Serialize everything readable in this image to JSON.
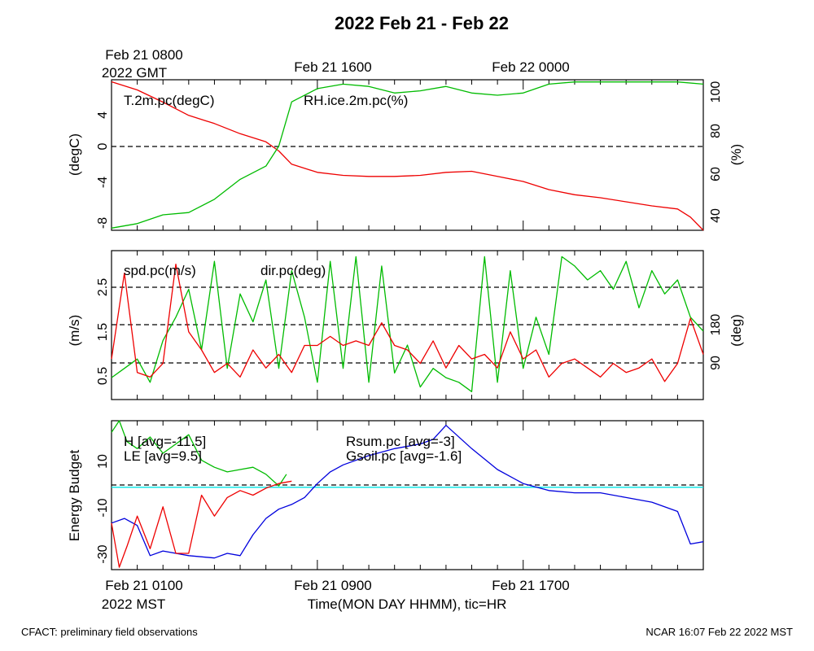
{
  "title": "2022 Feb 21 - Feb 22",
  "footer": {
    "left": "CFACT: preliminary field observations",
    "right": "NCAR 16:07 Feb 22 2022 MST"
  },
  "top_axis": {
    "line1": "Feb 21 0800",
    "line2": "2022 GMT",
    "labels": [
      "Feb 21 1600",
      "Feb 22 0000"
    ]
  },
  "bottom_axis": {
    "line2": "2022 MST",
    "labels": [
      "Feb 21 0100",
      "Feb 21 0900",
      "Feb 21 1700"
    ],
    "xlabel": "Time(MON DAY HHMM), tic=HR"
  },
  "colors": {
    "red": "#ee0000",
    "green": "#00bb00",
    "blue": "#0000dd",
    "cyan": "#00e5e5"
  },
  "chart_data": [
    {
      "type": "line",
      "x_unit": "hours since Feb 21 0000 MST",
      "xlim": [
        1,
        24
      ],
      "ylabel_left": "(degC)",
      "ylabel_right": "(%)",
      "ylim_left": [
        -8.3,
        6.5
      ],
      "ylim_right": [
        34,
        102
      ],
      "yticks_left": [
        "4",
        "0",
        "-4",
        "-8"
      ],
      "yticks_right": [
        "100",
        "80",
        "60",
        "40"
      ],
      "reference_lines_left": [
        0
      ],
      "series": [
        {
          "name": "T.2m.pc(degC)",
          "axis": "left",
          "color": "red",
          "x": [
            1,
            2,
            3,
            4,
            5,
            6,
            7,
            7.5,
            8,
            9,
            10,
            11,
            12,
            13,
            14,
            15,
            16,
            17,
            18,
            19,
            20,
            21,
            22,
            23,
            23.5,
            24
          ],
          "y": [
            6.3,
            5.5,
            4.3,
            3.0,
            2.2,
            1.2,
            0.4,
            -0.5,
            -1.8,
            -2.6,
            -2.9,
            -3.0,
            -3.0,
            -2.9,
            -2.6,
            -2.5,
            -3.0,
            -3.5,
            -4.3,
            -4.8,
            -5.1,
            -5.5,
            -5.9,
            -6.2,
            -7.0,
            -8.3
          ]
        },
        {
          "name": "RH.ice.2m.pc(%)",
          "axis": "right",
          "color": "green",
          "x": [
            1,
            2,
            3,
            4,
            5,
            6,
            7,
            7.5,
            8,
            9,
            10,
            11,
            12,
            13,
            14,
            15,
            16,
            17,
            18,
            19,
            20,
            21,
            22,
            23,
            24
          ],
          "y": [
            35,
            37,
            41,
            42,
            48,
            57,
            63,
            72,
            92,
            98,
            100,
            99,
            96,
            97,
            99,
            96,
            95,
            96,
            100,
            101,
            101,
            101,
            101,
            101,
            100
          ]
        }
      ]
    },
    {
      "type": "line",
      "x_unit": "hours since Feb 21 0000 MST",
      "xlim": [
        1,
        24
      ],
      "ylabel_left": "(m/s)",
      "ylabel_right": "(deg)",
      "ylim_left": [
        0.1,
        3.4
      ],
      "ylim_right": [
        23,
        343
      ],
      "yticks_left": [
        "2.5",
        "1.5",
        "0.5"
      ],
      "yticks_right": [
        "180",
        "90"
      ],
      "reference_lines_left": [
        0.8,
        1.65,
        2.5
      ],
      "series": [
        {
          "name": "spd.pc(m/s)",
          "axis": "left",
          "color": "red",
          "x": [
            1,
            1.5,
            2,
            2.5,
            3,
            3.5,
            4,
            4.5,
            5,
            5.5,
            6,
            6.5,
            7,
            7.5,
            8,
            8.5,
            9,
            9.5,
            10,
            10.5,
            11,
            11.5,
            12,
            12.5,
            13,
            13.5,
            14,
            14.5,
            15,
            15.5,
            16,
            16.5,
            17,
            17.5,
            18,
            18.5,
            19,
            19.5,
            20,
            20.5,
            21,
            21.5,
            22,
            22.5,
            23,
            23.5,
            24
          ],
          "y": [
            1.0,
            2.9,
            0.7,
            0.6,
            0.9,
            3.1,
            1.6,
            1.2,
            0.7,
            0.9,
            0.6,
            1.2,
            0.8,
            1.1,
            0.7,
            1.3,
            1.3,
            1.5,
            1.3,
            1.4,
            1.3,
            1.8,
            1.3,
            1.2,
            0.9,
            1.4,
            0.8,
            1.3,
            1.0,
            1.1,
            0.8,
            1.6,
            1.0,
            1.2,
            0.6,
            0.9,
            1.0,
            0.8,
            0.6,
            0.9,
            0.7,
            0.8,
            1.0,
            0.5,
            0.9,
            1.9,
            1.1
          ]
        },
        {
          "name": "dir.pc(deg)",
          "axis": "right",
          "color": "green",
          "x": [
            1,
            1.5,
            2,
            2.5,
            3,
            3.5,
            4,
            4.5,
            5,
            5.5,
            6,
            6.5,
            7,
            7.5,
            8,
            8.5,
            9,
            9.5,
            10,
            10.5,
            11,
            11.5,
            12,
            12.5,
            13,
            13.5,
            14,
            14.5,
            15,
            15.5,
            16,
            16.5,
            17,
            17.5,
            18,
            18.5,
            19,
            19.5,
            20,
            20.5,
            21,
            21.5,
            22,
            22.5,
            23,
            23.5,
            24
          ],
          "y": [
            70,
            90,
            110,
            60,
            150,
            200,
            260,
            130,
            320,
            90,
            250,
            190,
            280,
            90,
            300,
            200,
            60,
            320,
            90,
            330,
            60,
            310,
            80,
            140,
            50,
            90,
            70,
            60,
            40,
            330,
            60,
            300,
            90,
            200,
            120,
            330,
            310,
            280,
            300,
            260,
            320,
            220,
            300,
            250,
            280,
            200,
            170
          ]
        }
      ]
    },
    {
      "type": "line",
      "x_unit": "hours since Feb 21 0000 MST",
      "xlim": [
        1,
        24
      ],
      "ylabel_left": "Energy Budget",
      "ylim_left": [
        -37,
        27
      ],
      "yticks_left": [
        "10",
        "-10",
        "-30"
      ],
      "reference_lines_left": [
        0
      ],
      "series": [
        {
          "name": "H [avg=-11.5]",
          "color": "red",
          "x": [
            1,
            1.3,
            1.6,
            2,
            2.5,
            3,
            3.5,
            4,
            4.5,
            5,
            5.5,
            6,
            6.5,
            7,
            7.5,
            8
          ],
          "y": [
            -17,
            -36,
            -27,
            -14,
            -28,
            -10,
            -30,
            -30,
            -5,
            -14,
            -6,
            -3,
            -5,
            -2,
            0,
            1
          ]
        },
        {
          "name": "LE [avg=9.5]",
          "color": "green",
          "x": [
            1,
            1.3,
            1.6,
            2,
            2.5,
            3,
            3.5,
            4,
            4.5,
            5,
            5.5,
            6,
            6.5,
            7,
            7.5,
            7.8
          ],
          "y": [
            22,
            27,
            18,
            15,
            20,
            13,
            17,
            21,
            10,
            7,
            5,
            6,
            7,
            4,
            -1,
            4
          ]
        },
        {
          "name": "Rsum.pc [avg=-3]",
          "color": "blue",
          "x": [
            1,
            1.5,
            2,
            2.5,
            3,
            4,
            5,
            5.5,
            6,
            6.5,
            7,
            7.5,
            8,
            8.5,
            9,
            9.5,
            10,
            11,
            12,
            13,
            13.5,
            14,
            15,
            16,
            17,
            18,
            19,
            20,
            21,
            22,
            23,
            23.5,
            24
          ],
          "y": [
            -17,
            -15,
            -18,
            -31,
            -29,
            -31,
            -32,
            -30,
            -31,
            -22,
            -15,
            -11,
            -9,
            -6,
            0,
            5,
            8,
            12,
            15,
            17,
            19,
            25,
            15,
            6,
            0,
            -3,
            -4,
            -4,
            -6,
            -8,
            -12,
            -26,
            -25
          ]
        },
        {
          "name": "Gsoil.pc [avg=-1.6]",
          "color": "cyan",
          "x": [
            1,
            24
          ],
          "y": [
            -1.6,
            -1.6
          ]
        }
      ]
    }
  ]
}
